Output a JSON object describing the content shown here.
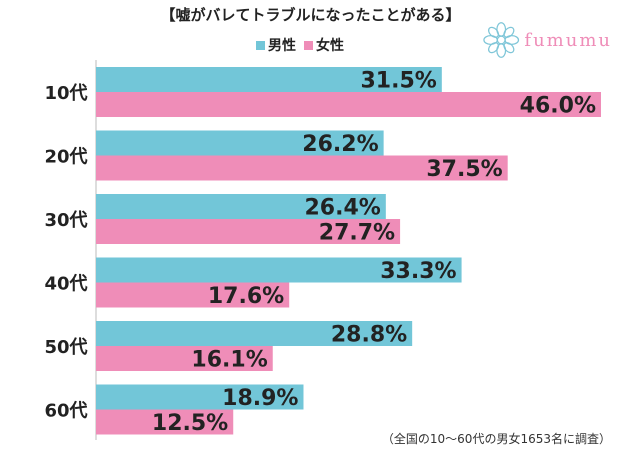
{
  "header": {
    "title": "【嘘がバレてトラブルになったことがある】",
    "logo_text": "fumumu"
  },
  "legend": [
    {
      "label": "男性",
      "color": "#72c6d8"
    },
    {
      "label": "女性",
      "color": "#ef8db8"
    }
  ],
  "footnote": "（全国の10〜60代の男女1653名に調査）",
  "icons": {
    "logo": "flower-icon"
  },
  "chart_data": {
    "type": "bar",
    "orientation": "horizontal",
    "title": "【嘘がバレてトラブルになったことがある】",
    "categories": [
      "10代",
      "20代",
      "30代",
      "40代",
      "50代",
      "60代"
    ],
    "xlim": [
      0,
      46
    ],
    "value_format": "percent",
    "series": [
      {
        "name": "男性",
        "color": "#72c6d8",
        "values": [
          31.5,
          26.2,
          26.4,
          33.3,
          28.8,
          18.9
        ]
      },
      {
        "name": "女性",
        "color": "#ef8db8",
        "values": [
          46.0,
          37.5,
          27.7,
          17.6,
          16.1,
          12.5
        ]
      }
    ],
    "grid": false,
    "legend_position": "top-center"
  }
}
